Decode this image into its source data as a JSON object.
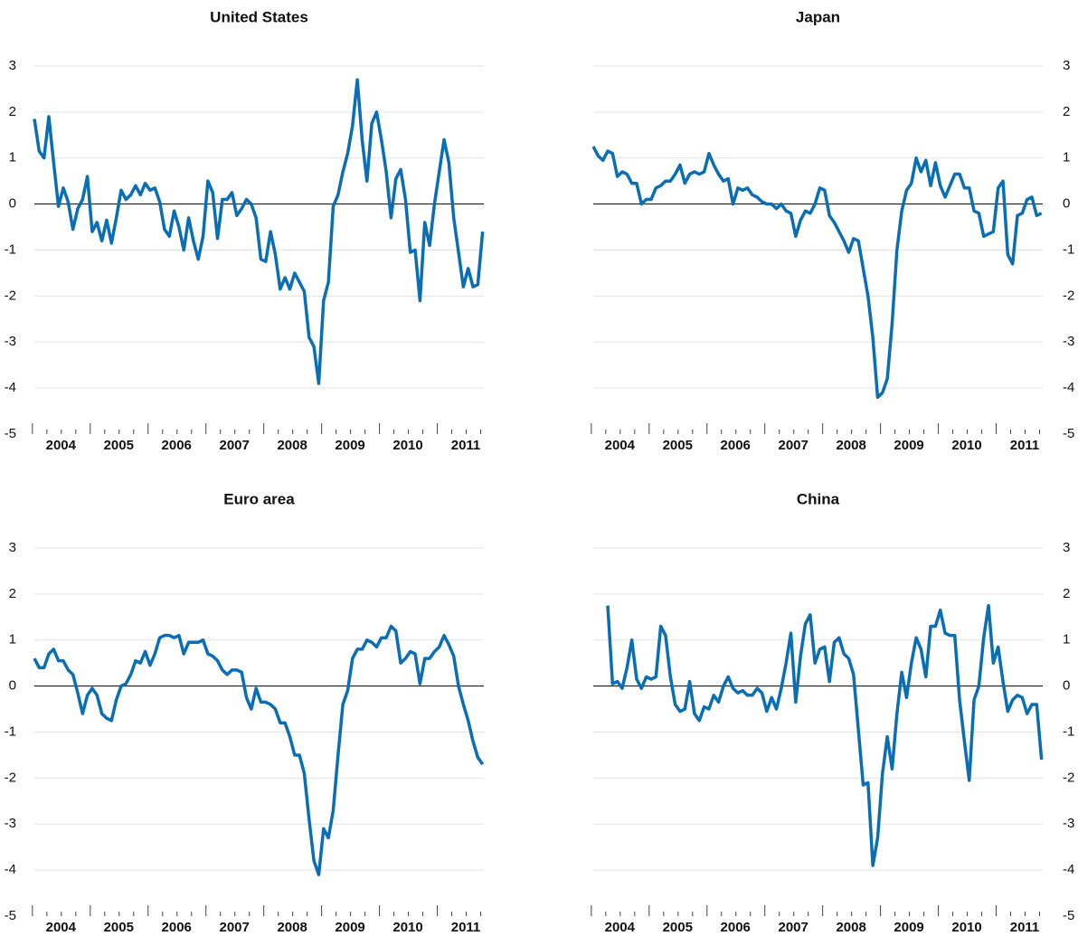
{
  "chart_data": [
    {
      "type": "line",
      "title": "United States",
      "color": "#0a6eb4",
      "yaxis_side": "left",
      "ylim": [
        -5,
        3
      ],
      "yticks": [
        -5,
        -4,
        -3,
        -2,
        -1,
        0,
        1,
        2,
        3
      ],
      "grid": true,
      "categories": [
        null,
        null,
        null,
        null,
        null,
        null,
        "2004",
        null,
        null,
        null,
        null,
        null,
        null,
        null,
        null,
        null,
        null,
        null,
        "2005",
        null,
        null,
        null,
        null,
        null,
        null,
        null,
        null,
        null,
        null,
        null,
        "2006",
        null,
        null,
        null,
        null,
        null,
        null,
        null,
        null,
        null,
        null,
        null,
        "2007",
        null,
        null,
        null,
        null,
        null,
        null,
        null,
        null,
        null,
        null,
        null,
        "2008",
        null,
        null,
        null,
        null,
        null,
        null,
        null,
        null,
        null,
        null,
        null,
        "2009",
        null,
        null,
        null,
        null,
        null,
        null,
        null,
        null,
        null,
        null,
        null,
        "2010",
        null,
        null,
        null,
        null,
        null,
        null,
        null,
        null,
        null,
        null,
        null,
        "2011",
        null,
        null,
        null
      ],
      "values": [
        1.85,
        1.15,
        1.0,
        1.9,
        0.9,
        -0.05,
        0.35,
        0.05,
        -0.55,
        -0.1,
        0.1,
        0.6,
        -0.6,
        -0.4,
        -0.8,
        -0.35,
        -0.85,
        -0.3,
        0.3,
        0.1,
        0.2,
        0.4,
        0.2,
        0.45,
        0.3,
        0.35,
        0.05,
        -0.55,
        -0.7,
        -0.15,
        -0.5,
        -1.0,
        -0.3,
        -0.8,
        -1.2,
        -0.7,
        0.5,
        0.25,
        -0.75,
        0.1,
        0.1,
        0.25,
        -0.25,
        -0.1,
        0.1,
        0.0,
        -0.3,
        -1.2,
        -1.25,
        -0.6,
        -1.1,
        -1.85,
        -1.6,
        -1.85,
        -1.5,
        -1.7,
        -1.9,
        -2.9,
        -3.1,
        -3.9,
        -2.1,
        -1.7,
        -0.05,
        0.2,
        0.7,
        1.1,
        1.7,
        2.7,
        1.4,
        0.5,
        1.75,
        2.0,
        1.4,
        0.7,
        -0.3,
        0.55,
        0.75,
        0.1,
        -1.05,
        -1.0,
        -2.1,
        -0.4,
        -0.9,
        0.0,
        0.7,
        1.4,
        0.9,
        -0.3,
        -1.05,
        -1.8,
        -1.4,
        -1.8,
        -1.75,
        -0.6
      ]
    },
    {
      "type": "line",
      "title": "Japan",
      "color": "#0a6eb4",
      "yaxis_side": "right",
      "ylim": [
        -5,
        3
      ],
      "yticks": [
        -5,
        -4,
        -3,
        -2,
        -1,
        0,
        1,
        2,
        3
      ],
      "grid": true,
      "categories": [
        null,
        null,
        null,
        null,
        null,
        null,
        "2004",
        null,
        null,
        null,
        null,
        null,
        null,
        null,
        null,
        null,
        null,
        null,
        "2005",
        null,
        null,
        null,
        null,
        null,
        null,
        null,
        null,
        null,
        null,
        null,
        "2006",
        null,
        null,
        null,
        null,
        null,
        null,
        null,
        null,
        null,
        null,
        null,
        "2007",
        null,
        null,
        null,
        null,
        null,
        null,
        null,
        null,
        null,
        null,
        null,
        "2008",
        null,
        null,
        null,
        null,
        null,
        null,
        null,
        null,
        null,
        null,
        null,
        "2009",
        null,
        null,
        null,
        null,
        null,
        null,
        null,
        null,
        null,
        null,
        null,
        "2010",
        null,
        null,
        null,
        null,
        null,
        null,
        null,
        null,
        null,
        null,
        null,
        "2011",
        null,
        null,
        null
      ],
      "values": [
        1.25,
        1.05,
        0.95,
        1.15,
        1.1,
        0.6,
        0.7,
        0.65,
        0.45,
        0.45,
        0.0,
        0.1,
        0.1,
        0.35,
        0.4,
        0.5,
        0.5,
        0.65,
        0.85,
        0.45,
        0.65,
        0.7,
        0.65,
        0.7,
        1.1,
        0.85,
        0.65,
        0.5,
        0.55,
        0.0,
        0.35,
        0.3,
        0.35,
        0.2,
        0.15,
        0.05,
        0.0,
        0.0,
        -0.1,
        0.0,
        -0.15,
        -0.2,
        -0.7,
        -0.35,
        -0.15,
        -0.2,
        0.0,
        0.35,
        0.3,
        -0.25,
        -0.4,
        -0.6,
        -0.8,
        -1.05,
        -0.75,
        -0.8,
        -1.4,
        -2.0,
        -2.9,
        -4.2,
        -4.1,
        -3.8,
        -2.6,
        -1.0,
        -0.15,
        0.3,
        0.45,
        1.0,
        0.7,
        0.95,
        0.4,
        0.9,
        0.4,
        0.15,
        0.4,
        0.65,
        0.65,
        0.35,
        0.35,
        -0.15,
        -0.2,
        -0.7,
        -0.65,
        -0.6,
        0.35,
        0.5,
        -1.1,
        -1.3,
        -0.25,
        -0.2,
        0.1,
        0.15,
        -0.25,
        -0.2
      ]
    },
    {
      "type": "line",
      "title": "Euro area",
      "color": "#0a6eb4",
      "yaxis_side": "left",
      "ylim": [
        -5,
        3
      ],
      "yticks": [
        -5,
        -4,
        -3,
        -2,
        -1,
        0,
        1,
        2,
        3
      ],
      "grid": true,
      "categories": [
        null,
        null,
        null,
        null,
        null,
        null,
        "2004",
        null,
        null,
        null,
        null,
        null,
        null,
        null,
        null,
        null,
        null,
        null,
        "2005",
        null,
        null,
        null,
        null,
        null,
        null,
        null,
        null,
        null,
        null,
        null,
        "2006",
        null,
        null,
        null,
        null,
        null,
        null,
        null,
        null,
        null,
        null,
        null,
        "2007",
        null,
        null,
        null,
        null,
        null,
        null,
        null,
        null,
        null,
        null,
        null,
        "2008",
        null,
        null,
        null,
        null,
        null,
        null,
        null,
        null,
        null,
        null,
        null,
        "2009",
        null,
        null,
        null,
        null,
        null,
        null,
        null,
        null,
        null,
        null,
        null,
        "2010",
        null,
        null,
        null,
        null,
        null,
        null,
        null,
        null,
        null,
        null,
        null,
        "2011",
        null,
        null,
        null
      ],
      "values": [
        0.6,
        0.4,
        0.4,
        0.7,
        0.8,
        0.55,
        0.55,
        0.35,
        0.25,
        -0.15,
        -0.6,
        -0.2,
        -0.05,
        -0.2,
        -0.6,
        -0.7,
        -0.75,
        -0.3,
        0.0,
        0.05,
        0.25,
        0.55,
        0.5,
        0.75,
        0.45,
        0.7,
        1.05,
        1.1,
        1.1,
        1.05,
        1.1,
        0.7,
        0.95,
        0.95,
        0.95,
        1.0,
        0.7,
        0.65,
        0.55,
        0.35,
        0.25,
        0.35,
        0.35,
        0.3,
        -0.25,
        -0.5,
        -0.05,
        -0.35,
        -0.35,
        -0.4,
        -0.5,
        -0.8,
        -0.8,
        -1.1,
        -1.5,
        -1.5,
        -1.9,
        -2.9,
        -3.8,
        -4.1,
        -3.1,
        -3.3,
        -2.7,
        -1.5,
        -0.4,
        -0.1,
        0.6,
        0.8,
        0.8,
        1.0,
        0.95,
        0.85,
        1.05,
        1.05,
        1.3,
        1.2,
        0.5,
        0.6,
        0.75,
        0.7,
        0.05,
        0.6,
        0.6,
        0.75,
        0.85,
        1.1,
        0.9,
        0.65,
        0.0,
        -0.4,
        -0.75,
        -1.2,
        -1.55,
        -1.7
      ]
    },
    {
      "type": "line",
      "title": "China",
      "color": "#0a6eb4",
      "yaxis_side": "right",
      "ylim": [
        -5,
        3
      ],
      "yticks": [
        -5,
        -4,
        -3,
        -2,
        -1,
        0,
        1,
        2,
        3
      ],
      "grid": true,
      "categories": [
        null,
        null,
        null,
        null,
        null,
        null,
        "2004",
        null,
        null,
        null,
        null,
        null,
        null,
        null,
        null,
        null,
        null,
        null,
        "2005",
        null,
        null,
        null,
        null,
        null,
        null,
        null,
        null,
        null,
        null,
        null,
        "2006",
        null,
        null,
        null,
        null,
        null,
        null,
        null,
        null,
        null,
        null,
        null,
        "2007",
        null,
        null,
        null,
        null,
        null,
        null,
        null,
        null,
        null,
        null,
        null,
        "2008",
        null,
        null,
        null,
        null,
        null,
        null,
        null,
        null,
        null,
        null,
        null,
        "2009",
        null,
        null,
        null,
        null,
        null,
        null,
        null,
        null,
        null,
        null,
        null,
        "2010",
        null,
        null,
        null,
        null,
        null,
        null,
        null,
        null,
        null,
        null,
        null,
        "2011",
        null,
        null,
        null
      ],
      "values": [
        null,
        null,
        null,
        1.75,
        0.05,
        0.1,
        -0.05,
        0.4,
        1.0,
        0.15,
        -0.05,
        0.2,
        0.15,
        0.2,
        1.3,
        1.1,
        0.2,
        -0.4,
        -0.55,
        -0.5,
        0.1,
        -0.6,
        -0.75,
        -0.45,
        -0.5,
        -0.2,
        -0.35,
        0.0,
        0.2,
        -0.05,
        -0.15,
        -0.1,
        -0.2,
        -0.2,
        -0.05,
        -0.15,
        -0.55,
        -0.25,
        -0.5,
        -0.05,
        0.5,
        1.15,
        -0.35,
        0.65,
        1.35,
        1.55,
        0.5,
        0.8,
        0.85,
        0.1,
        0.95,
        1.05,
        0.7,
        0.6,
        0.25,
        -0.95,
        -2.15,
        -2.1,
        -3.9,
        -3.3,
        -1.9,
        -1.1,
        -1.8,
        -0.6,
        0.3,
        -0.25,
        0.5,
        1.05,
        0.8,
        0.2,
        1.3,
        1.3,
        1.65,
        1.15,
        1.1,
        1.1,
        -0.3,
        -1.2,
        -2.05,
        -0.3,
        0.0,
        1.05,
        1.75,
        0.5,
        0.85,
        0.1,
        -0.55,
        -0.3,
        -0.2,
        -0.25,
        -0.6,
        -0.4,
        -0.4,
        -1.6
      ]
    }
  ]
}
